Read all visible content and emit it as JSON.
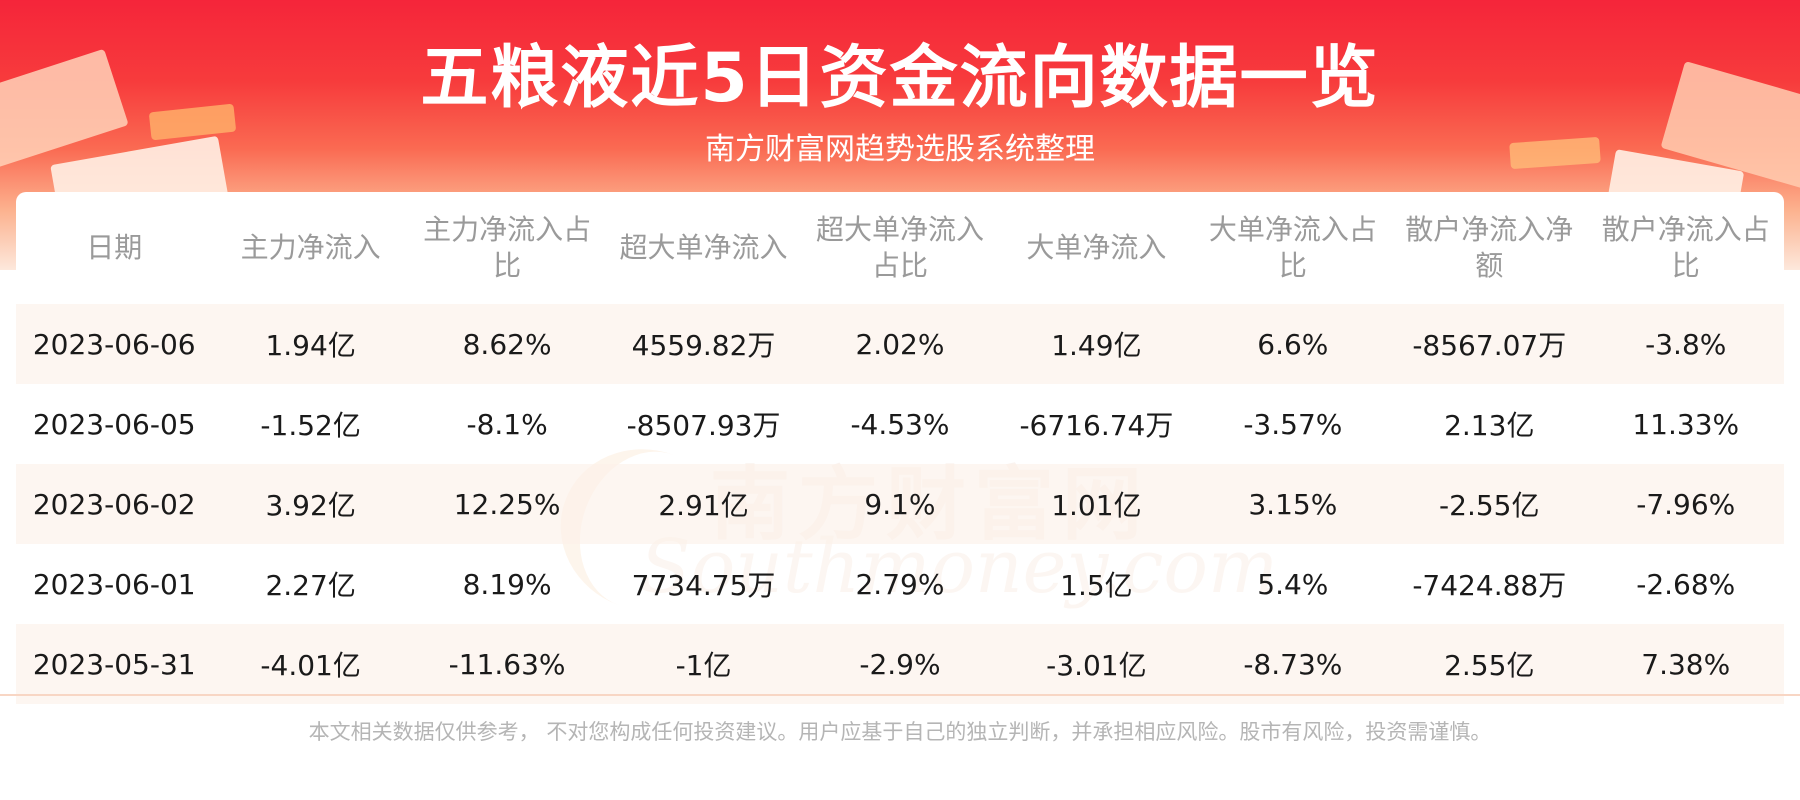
{
  "title": "五粮液近5日资金流向数据一览",
  "subtitle": "南方财富网趋势选股系统整理",
  "watermark": {
    "cn": "南方财富网",
    "en": "Southmoney.com"
  },
  "table": {
    "headers": [
      "日期",
      "主力净流入",
      "主力净流入占比",
      "超大单净流入",
      "超大单净流入占比",
      "大单净流入",
      "大单净流入占比",
      "散户净流入净额",
      "散户净流入占比"
    ],
    "rows": [
      [
        "2023-06-06",
        "1.94亿",
        "8.62%",
        "4559.82万",
        "2.02%",
        "1.49亿",
        "6.6%",
        "-8567.07万",
        "-3.8%"
      ],
      [
        "2023-06-05",
        "-1.52亿",
        "-8.1%",
        "-8507.93万",
        "-4.53%",
        "-6716.74万",
        "-3.57%",
        "2.13亿",
        "11.33%"
      ],
      [
        "2023-06-02",
        "3.92亿",
        "12.25%",
        "2.91亿",
        "9.1%",
        "1.01亿",
        "3.15%",
        "-2.55亿",
        "-7.96%"
      ],
      [
        "2023-06-01",
        "2.27亿",
        "8.19%",
        "7734.75万",
        "2.79%",
        "1.5亿",
        "5.4%",
        "-7424.88万",
        "-2.68%"
      ],
      [
        "2023-05-31",
        "-4.01亿",
        "-11.63%",
        "-1亿",
        "-2.9%",
        "-3.01亿",
        "-8.73%",
        "2.55亿",
        "7.38%"
      ]
    ]
  },
  "footer": "本文相关数据仅供参考， 不对您构成任何投资建议。用户应基于自己的独立判断，并承担相应风险。股市有风险，投资需谨慎。",
  "colors": {
    "banner_top": "#f5253a",
    "banner_bottom": "#fde8dc",
    "row_highlight": "#fdf5ee",
    "header_text": "#9a9a9a"
  }
}
